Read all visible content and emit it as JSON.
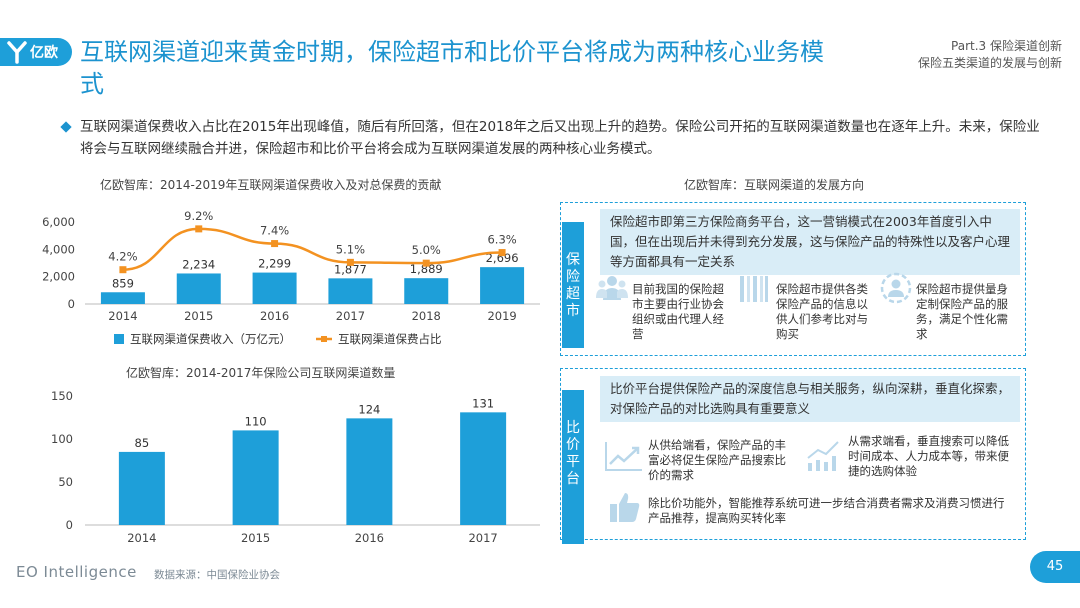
{
  "header": {
    "logo_text": "亿欧",
    "title": "互联网渠道迎来黄金时期，保险超市和比价平台将成为两种核心业务模式",
    "part_line1": "Part.3 保险渠道创新",
    "part_line2": "保险五类渠道的发展与创新"
  },
  "summary": "互联网渠道保费收入占比在2015年出现峰值，随后有所回落，但在2018年之后又出现上升的趋势。保险公司开拓的互联网渠道数量也在逐年上升。未来，保险业将会与互联网继续融合并进，保险超市和比价平台将会成为互联网渠道发展的两种核心业务模式。",
  "colors": {
    "accent": "#1e9fd9",
    "bar": "#1e9fd9",
    "line": "#f39221",
    "highlight_bg": "#d9edf7"
  },
  "chart_data": [
    {
      "type": "bar",
      "title": "亿欧智库：2014-2019年互联网渠道保费收入及对总保费的贡献",
      "categories": [
        "2014",
        "2015",
        "2016",
        "2017",
        "2018",
        "2019"
      ],
      "series": [
        {
          "name": "互联网渠道保费收入（万亿元）",
          "type": "bar",
          "values": [
            859,
            2234,
            2299,
            1877,
            1889,
            2696
          ],
          "labels": [
            "859",
            "2,234",
            "2,299",
            "1,877",
            "1,889",
            "2,696"
          ]
        },
        {
          "name": "互联网渠道保费占比",
          "type": "line",
          "values": [
            4.2,
            9.2,
            7.4,
            5.1,
            5.0,
            6.3
          ],
          "labels": [
            "4.2%",
            "9.2%",
            "7.4%",
            "5.1%",
            "5.0%",
            "6.3%"
          ]
        }
      ],
      "ylim": [
        0,
        6000
      ],
      "yticks": [
        "0",
        "2,000",
        "4,000",
        "6,000"
      ],
      "legend_position": "bottom"
    },
    {
      "type": "bar",
      "title": "亿欧智库：2014-2017年保险公司互联网渠道数量",
      "categories": [
        "2014",
        "2015",
        "2016",
        "2017"
      ],
      "values": [
        85,
        110,
        124,
        131
      ],
      "ylim": [
        0,
        150
      ],
      "yticks": [
        "0",
        "50",
        "100",
        "150"
      ]
    }
  ],
  "right_panel": {
    "title": "亿欧智库：互联网渠道的发展方向",
    "supermarket": {
      "label": "保险超市",
      "highlight": "保险超市即第三方保险商务平台，这一营销模式在2003年首度引入中国，但在出现后并未得到充分发展，这与保险产品的特殊性以及客户心理等方面都具有一定关系",
      "items": [
        {
          "icon": "people-icon",
          "text": "目前我国的保险超市主要由行业协会组织或由代理人经营"
        },
        {
          "icon": "list-check-icon",
          "text": "保险超市提供各类保险产品的信息以供人们参考比对与购买"
        },
        {
          "icon": "user-settings-icon",
          "text": "保险超市提供量身定制保险产品的服务，满足个性化需求"
        }
      ]
    },
    "comparison": {
      "label": "比价平台",
      "highlight": "比价平台提供保险产品的深度信息与相关服务，纵向深耕，垂直化探索，对保险产品的对比选购具有重要意义",
      "items": [
        {
          "icon": "trend-up-icon",
          "text": "从供给端看，保险产品的丰富必将促生保险产品搜索比价的需求"
        },
        {
          "icon": "bar-growth-icon",
          "text": "从需求端看，垂直搜索可以降低时间成本、人力成本等，带来便捷的选购体验"
        },
        {
          "icon": "thumbs-up-icon",
          "text": "除比价功能外，智能推荐系统可进一步结合消费者需求及消费习惯进行产品推荐，提高购买转化率"
        }
      ]
    }
  },
  "footer": {
    "brand": "EO Intelligence",
    "source": "数据来源：中国保险业协会",
    "page": "45"
  }
}
